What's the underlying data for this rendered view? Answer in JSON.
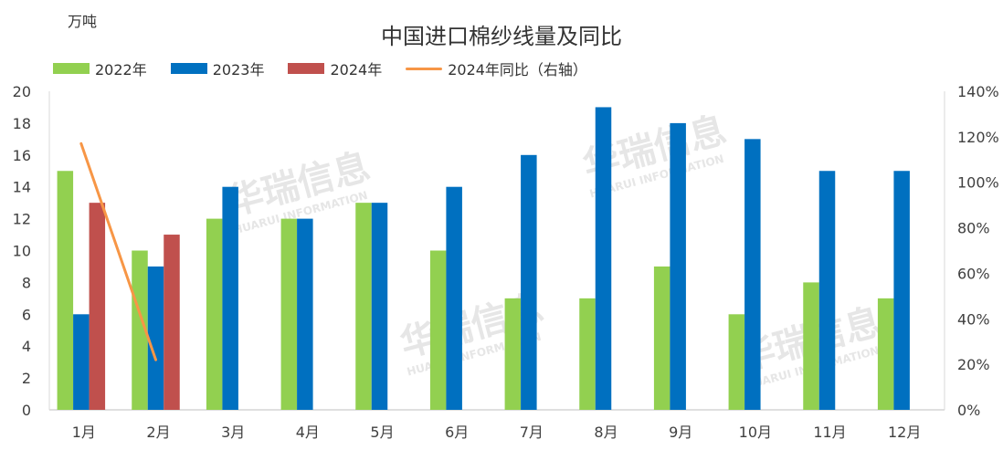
{
  "chart_data": {
    "type": "bar",
    "title": "中国进口棉纱线量及同比",
    "unit_label": "万吨",
    "categories": [
      "1月",
      "2月",
      "3月",
      "4月",
      "5月",
      "6月",
      "7月",
      "8月",
      "9月",
      "10月",
      "11月",
      "12月"
    ],
    "series": [
      {
        "name": "2022年",
        "kind": "bar",
        "color": "#92d050",
        "values": [
          15,
          10,
          12,
          12,
          13,
          10,
          7,
          7,
          9,
          6,
          8,
          7
        ]
      },
      {
        "name": "2023年",
        "kind": "bar",
        "color": "#0070c0",
        "values": [
          6,
          9,
          14,
          12,
          13,
          14,
          16,
          19,
          18,
          17,
          15,
          15
        ]
      },
      {
        "name": "2024年",
        "kind": "bar",
        "color": "#c0504d",
        "values": [
          13,
          11,
          null,
          null,
          null,
          null,
          null,
          null,
          null,
          null,
          null,
          null
        ]
      },
      {
        "name": "2024年同比（右轴）",
        "kind": "line",
        "axis": "right",
        "color": "#f79646",
        "values": [
          117,
          22,
          null,
          null,
          null,
          null,
          null,
          null,
          null,
          null,
          null,
          null
        ]
      }
    ],
    "ylim": [
      0,
      20
    ],
    "yticks": [
      0,
      2,
      4,
      6,
      8,
      10,
      12,
      14,
      16,
      18,
      20
    ],
    "y2lim": [
      0,
      140
    ],
    "y2ticks": [
      "0%",
      "20%",
      "40%",
      "60%",
      "80%",
      "100%",
      "120%",
      "140%"
    ],
    "legend_position": "top-left",
    "grid": false,
    "watermark": {
      "text": "华瑞信息",
      "subtext": "HUARUI INFORMATION"
    }
  }
}
